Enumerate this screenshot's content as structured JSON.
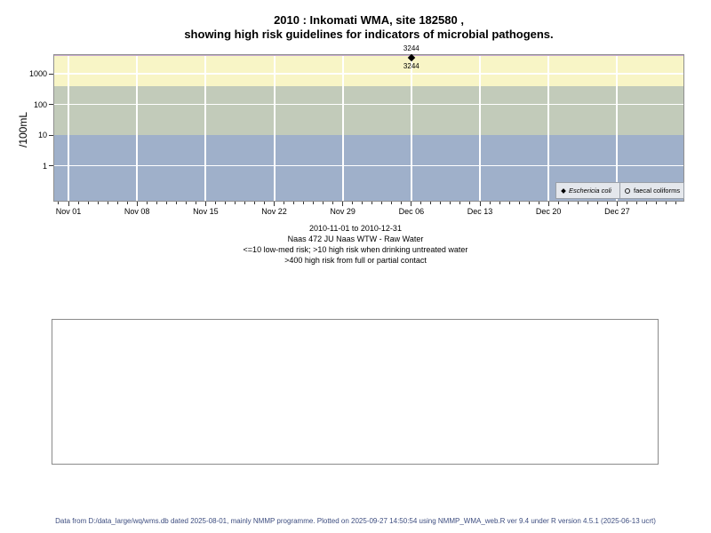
{
  "title": {
    "line1": "2010 : Inkomati WMA, site 182580 ,",
    "line2": "showing high risk guidelines for indicators of microbial pathogens."
  },
  "chart_data": {
    "type": "scatter",
    "title": "2010 : Inkomati WMA, site 182580 , showing high risk guidelines for indicators of microbial pathogens.",
    "ylabel": "/100mL",
    "y_scale": "log10",
    "y_ticks": [
      1,
      10,
      100,
      1000
    ],
    "h_gridlines": [
      1000,
      100,
      1
    ],
    "ylim_approx": [
      0.07,
      4400
    ],
    "x_tick_labels": [
      "Nov 01",
      "Nov 08",
      "Nov 15",
      "Nov 22",
      "Nov 29",
      "Dec 06",
      "Dec 13",
      "Dec 20",
      "Dec 27"
    ],
    "x_range": "2010-11-01 to 2010-12-31",
    "grid": true,
    "legend_position": "bottom-right",
    "top_guideline_color": "#c7a9cf",
    "risk_bands": [
      {
        "name": "high-risk-band",
        "meaning": ">400 high risk from full or partial contact",
        "from": 400,
        "to": 4400,
        "color": "#f8f5c6"
      },
      {
        "name": "medium-risk-band",
        "meaning": ">10 high risk when drinking untreated water",
        "from": 10,
        "to": 400,
        "color": "#c2cbba"
      },
      {
        "name": "low-risk-band",
        "meaning": "<=10 low-med risk",
        "from": 0.07,
        "to": 10,
        "color": "#9fb0ca"
      }
    ],
    "series": [
      {
        "name": "Eschericia coli",
        "symbol": "filled-diamond",
        "points": [
          {
            "date": "Dec 06",
            "day_index": 35,
            "value": 3244,
            "label": "3244"
          }
        ]
      },
      {
        "name": "faecal coliforms",
        "symbol": "open-circle",
        "points": []
      }
    ]
  },
  "legend": {
    "items": [
      {
        "symbol": "filled-diamond",
        "label": "Eschericia coli"
      },
      {
        "symbol": "open-circle",
        "label": "faecal coliforms"
      }
    ]
  },
  "caption": {
    "lines": [
      "2010-11-01 to 2010-12-31",
      "Naas 472 JU Naas WTW - Raw Water",
      "<=10 low-med risk; >10 high risk when drinking untreated water",
      ">400 high risk from full or partial contact"
    ]
  },
  "footer": "Data from D:/data_large/wq/wms.db dated 2025-08-01, mainly NMMP programme. Plotted on 2025-09-27 14:50:54 using NMMP_WMA_web.R ver 9.4 under R version 4.5.1 (2025-06-13 ucrt)"
}
